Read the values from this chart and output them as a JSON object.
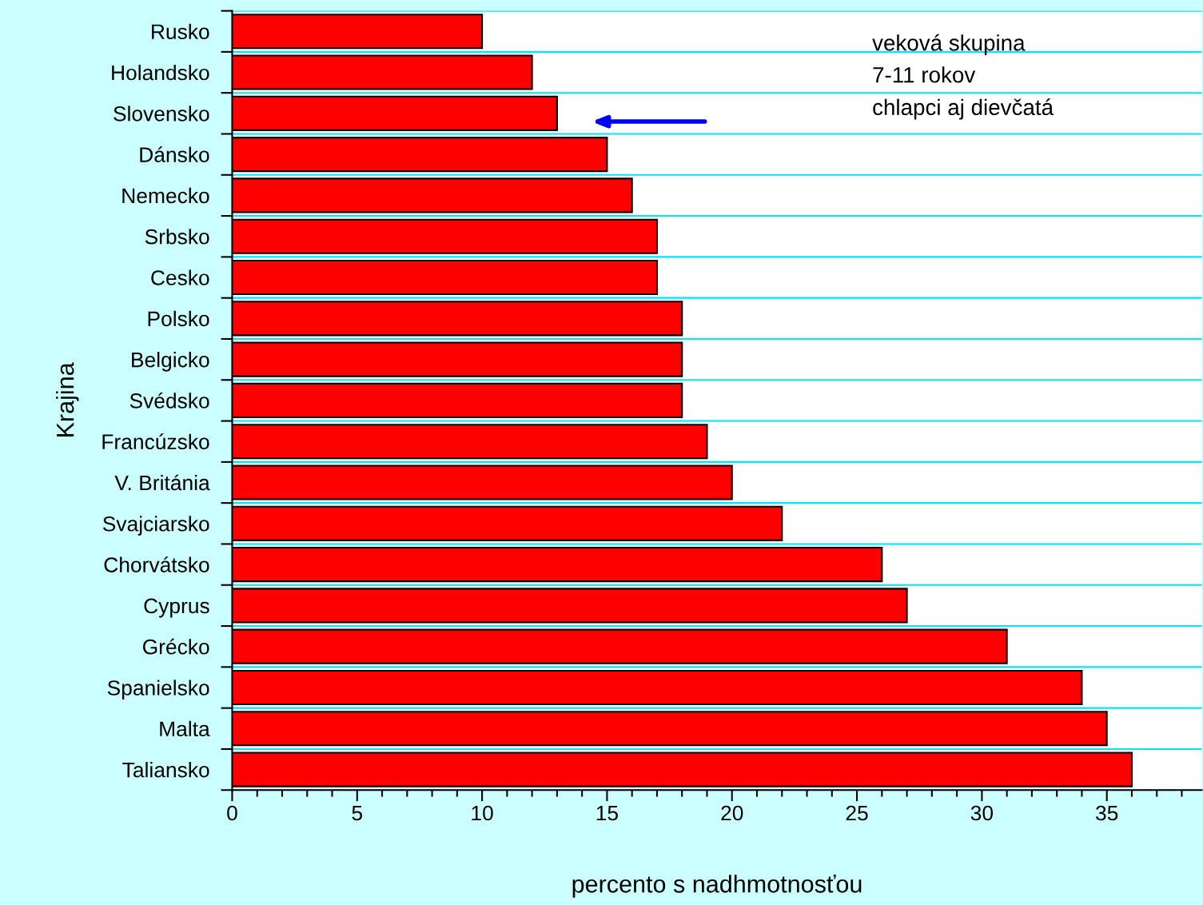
{
  "chart_data": {
    "type": "bar",
    "orientation": "horizontal",
    "categories": [
      "Rusko",
      "Holandsko",
      "Slovensko",
      "Dánsko",
      "Nemecko",
      "Srbsko",
      "Cesko",
      "Polsko",
      "Belgicko",
      "Svédsko",
      "Francúzsko",
      "V. Británia",
      "Svajciarsko",
      "Chorvátsko",
      "Cyprus",
      "Grécko",
      "Spanielsko",
      "Malta",
      "Taliansko"
    ],
    "values": [
      10,
      12,
      13,
      15,
      16,
      17,
      17,
      18,
      18,
      18,
      19,
      20,
      22,
      26,
      27,
      31,
      34,
      35,
      36
    ],
    "color": "#ff0000",
    "xlim": [
      0,
      38.8
    ],
    "xticks": [
      0,
      5,
      10,
      15,
      20,
      25,
      30,
      35
    ],
    "xlabel": "percento s nadhmotnosťou",
    "ylabel": "Krajina",
    "grid": "y",
    "legend": false,
    "annotations": [
      "veková skupina\n7-11 rokov\nchlapci aj dievčatá"
    ]
  }
}
